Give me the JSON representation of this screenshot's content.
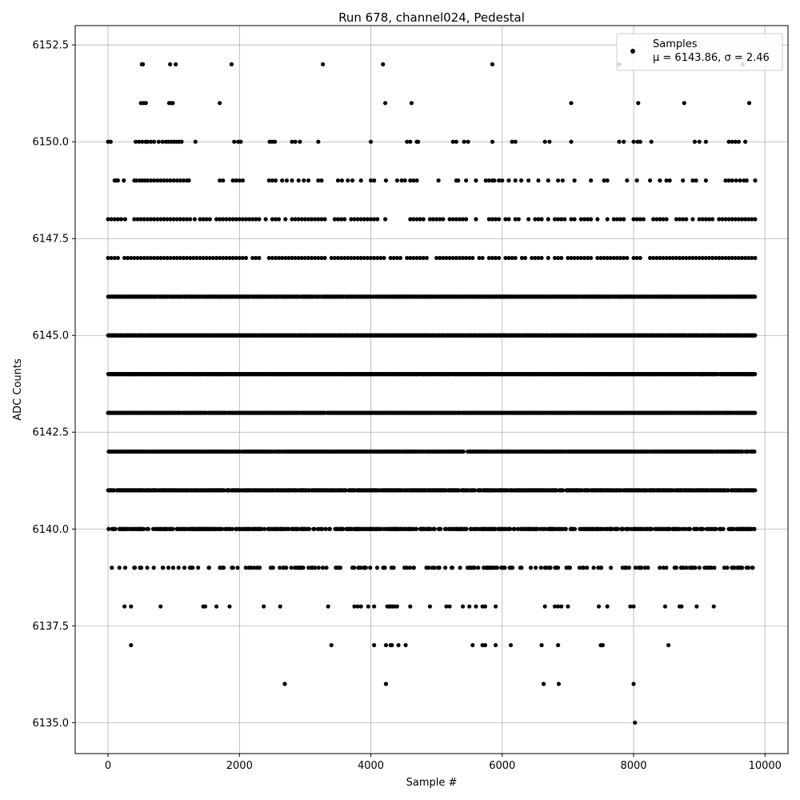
{
  "chart_data": {
    "type": "scatter",
    "title": "Run 678, channel024, Pedestal",
    "xlabel": "Sample #",
    "ylabel": "ADC Counts",
    "xlim": [
      -500,
      10350
    ],
    "ylim": [
      6134.2,
      6153.0
    ],
    "xticks": [
      0,
      2000,
      4000,
      6000,
      8000,
      10000
    ],
    "xtick_labels": [
      "0",
      "2000",
      "4000",
      "6000",
      "8000",
      "10000"
    ],
    "yticks": [
      6135.0,
      6137.5,
      6140.0,
      6142.5,
      6145.0,
      6147.5,
      6150.0,
      6152.5
    ],
    "ytick_labels": [
      "6135.0",
      "6137.5",
      "6140.0",
      "6142.5",
      "6145.0",
      "6147.5",
      "6150.0",
      "6152.5"
    ],
    "grid": true,
    "legend_position": "top-right",
    "series": [
      {
        "name": "Samples",
        "color": "#000000",
        "marker": "circle",
        "points_description": "Integer-valued ADC samples for sample indices 0-9850; dense bands at 6141-6148, sparser at tails",
        "band_samples": [
          {
            "y": 6152,
            "x": [
              515,
              530,
              945,
              1030,
              1880,
              3270,
              4185,
              5850,
              7780,
              9660
            ]
          },
          {
            "y": 6151,
            "x": [
              500,
              540,
              575,
              930,
              960,
              985,
              1700,
              4220,
              4620,
              7050,
              8070,
              8770,
              9760
            ]
          },
          {
            "y": 6150,
            "x": [
              0,
              40,
              420,
              470,
              520,
              570,
              600,
              650,
              700,
              770,
              830,
              880,
              920,
              960,
              1000,
              1040,
              1080,
              1120,
              1330,
              1920,
              1980,
              2020,
              2460,
              2500,
              2540,
              2800,
              2850,
              2920,
              3200,
              4000,
              4550,
              4600,
              4700,
              4720,
              5250,
              5300,
              5420,
              5480,
              5850,
              6150,
              6200,
              6650,
              6720,
              7050,
              7780,
              7850,
              8000,
              8060,
              8100,
              8270,
              8930,
              9000,
              9100,
              9450,
              9500,
              9550,
              9600,
              9700
            ]
          },
          {
            "y": 6149,
            "x": [
              100,
              120,
              150,
              240,
              400,
              430,
              480,
              520,
              560,
              600,
              650,
              700,
              750,
              800,
              850,
              900,
              950,
              1000,
              1050,
              1100,
              1150,
              1200,
              1230,
              1700,
              1750,
              1900,
              1950,
              2000,
              2050,
              2450,
              2500,
              2550,
              2650,
              2720,
              2800,
              2900,
              2980,
              3050,
              3200,
              3250,
              3500,
              3560,
              3650,
              3720,
              3850,
              4000,
              4050,
              4230,
              4400,
              4470,
              4520,
              4600,
              4650,
              4700,
              5030,
              5300,
              5330,
              5450,
              5600,
              5750,
              5800,
              5850,
              5880,
              5950,
              6000,
              6100,
              6200,
              6290,
              6400,
              6550,
              6700,
              6850,
              6920,
              7100,
              7350,
              7550,
              7600,
              7900,
              8050,
              8250,
              8400,
              8500,
              8550,
              8750,
              8900,
              8950,
              9100,
              9400,
              9450,
              9500,
              9560,
              9620,
              9680,
              9720,
              9850
            ]
          },
          {
            "y": 6148,
            "x": [
              0,
              50,
              100,
              150,
              200,
              260,
              400,
              450,
              500,
              550,
              600,
              650,
              700,
              750,
              800,
              850,
              900,
              950,
              1000,
              1050,
              1100,
              1150,
              1200,
              1250,
              1320,
              1400,
              1450,
              1500,
              1550,
              1650,
              1700,
              1750,
              1800,
              1850,
              1900,
              1950,
              2000,
              2050,
              2100,
              2150,
              2200,
              2250,
              2300,
              2400,
              2500,
              2550,
              2600,
              2700,
              2800,
              2850,
              2900,
              2950,
              3000,
              3050,
              3100,
              3150,
              3200,
              3250,
              3300,
              3450,
              3500,
              3550,
              3600,
              3700,
              3750,
              3800,
              3850,
              3900,
              3950,
              4000,
              4050,
              4100,
              4220,
              4600,
              4650,
              4700,
              4750,
              4800,
              4900,
              4950,
              5000,
              5050,
              5100,
              5200,
              5250,
              5300,
              5350,
              5400,
              5450,
              5600,
              5800,
              5850,
              5900,
              5950,
              6050,
              6100,
              6200,
              6250,
              6400,
              6500,
              6550,
              6600,
              6700,
              6800,
              6850,
              6900,
              6950,
              7050,
              7100,
              7200,
              7250,
              7300,
              7350,
              7450,
              7600,
              7700,
              7750,
              7800,
              7850,
              8000,
              8050,
              8100,
              8150,
              8300,
              8350,
              8400,
              8450,
              8500,
              8650,
              8700,
              8750,
              8800,
              8900,
              9000,
              9050,
              9100,
              9150,
              9200,
              9300,
              9350,
              9400,
              9450,
              9500,
              9550,
              9600,
              9650,
              9700,
              9750,
              9800,
              9850
            ]
          },
          {
            "y": 6147,
            "x": [
              0,
              50,
              100,
              150,
              250,
              300,
              350,
              400,
              450,
              500,
              550,
              600,
              650,
              700,
              750,
              800,
              850,
              900,
              950,
              1000,
              1050,
              1100,
              1150,
              1200,
              1250,
              1300,
              1350,
              1400,
              1450,
              1500,
              1550,
              1600,
              1650,
              1700,
              1750,
              1800,
              1850,
              1900,
              1950,
              2000,
              2050,
              2100,
              2200,
              2250,
              2300,
              2450,
              2500,
              2550,
              2600,
              2650,
              2700,
              2750,
              2800,
              2850,
              2900,
              2950,
              3000,
              3050,
              3100,
              3150,
              3200,
              3250,
              3300,
              3400,
              3450,
              3500,
              3550,
              3600,
              3650,
              3700,
              3750,
              3800,
              3850,
              3900,
              3950,
              4000,
              4050,
              4100,
              4150,
              4200,
              4300,
              4350,
              4400,
              4450,
              4550,
              4600,
              4650,
              4700,
              4750,
              4800,
              4850,
              5000,
              5050,
              5100,
              5150,
              5200,
              5250,
              5300,
              5350,
              5400,
              5450,
              5500,
              5550,
              5650,
              5700,
              5800,
              5850,
              5900,
              5950,
              6050,
              6100,
              6150,
              6200,
              6300,
              6350,
              6450,
              6500,
              6550,
              6600,
              6700,
              6800,
              6850,
              6900,
              7000,
              7050,
              7100,
              7150,
              7200,
              7250,
              7300,
              7350,
              7450,
              7500,
              7550,
              7600,
              7650,
              7700,
              7750,
              7800,
              7850,
              7900,
              8000,
              8050,
              8100,
              8250,
              8300,
              8350,
              8400,
              8450,
              8500,
              8550,
              8600,
              8650,
              8700,
              8750,
              8800,
              8850,
              8900,
              8950,
              9000,
              9050,
              9100,
              9150,
              9200,
              9250,
              9300,
              9350,
              9400,
              9450,
              9500,
              9550,
              9600,
              9650,
              9700,
              9750,
              9800,
              9850
            ]
          },
          {
            "y": 6138,
            "x": [
              250,
              350,
              800,
              1450,
              1480,
              1650,
              1850,
              2370,
              2620,
              3350,
              3750,
              3800,
              3850,
              3960,
              4050,
              4250,
              4280,
              4300,
              4330,
              4360,
              4400,
              4600,
              4900,
              5150,
              5200,
              5400,
              5500,
              5600,
              5700,
              5740,
              5900,
              6650,
              6800,
              6850,
              6900,
              7000,
              7470,
              7600,
              7950,
              8000,
              8480,
              8700,
              8730,
              8960,
              9220
            ]
          },
          {
            "y": 6137,
            "x": [
              350,
              3400,
              4050,
              4230,
              4300,
              4320,
              4420,
              4530,
              5550,
              5700,
              5740,
              5900,
              6130,
              6600,
              6850,
              7500,
              7530,
              8530
            ]
          },
          {
            "y": 6136,
            "x": [
              2690,
              4230,
              6630,
              6860,
              8000
            ]
          },
          {
            "y": 6135,
            "x": [
              8020
            ]
          }
        ],
        "dense_bands": [
          6139,
          6140,
          6141,
          6142,
          6143,
          6144,
          6145,
          6146
        ],
        "dense_band_x_range": [
          0,
          9850
        ]
      }
    ],
    "legend": {
      "entries": [
        "Samples"
      ],
      "stats_text": "μ = 6143.86, σ = 2.46"
    }
  }
}
